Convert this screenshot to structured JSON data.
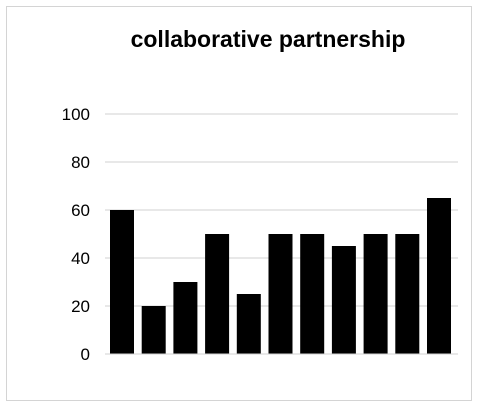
{
  "chart_data": {
    "type": "bar",
    "title": "collaborative partnership",
    "xlabel": "",
    "ylabel": "",
    "categories": [
      "",
      "",
      "",
      "",
      "",
      "",
      "",
      "",
      "",
      "",
      ""
    ],
    "values": [
      60,
      20,
      30,
      50,
      25,
      50,
      50,
      45,
      50,
      50,
      65
    ],
    "ylim": [
      0,
      100
    ],
    "yticks": [
      "0",
      "20",
      "40",
      "60",
      "80",
      "100"
    ],
    "grid": true,
    "legend": "none",
    "bar_color": "#000000",
    "grid_color": "#d0d0d0"
  }
}
